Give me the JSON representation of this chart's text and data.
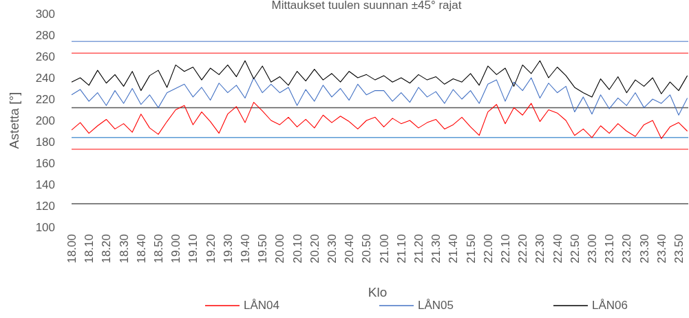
{
  "chart_data": {
    "type": "line",
    "title": "Mittaukset tuulen suunnan ±45° rajat",
    "xlabel": "Klo",
    "ylabel": "Astetta [°]",
    "categories": [
      "18.00",
      null,
      "18.10",
      null,
      "18.20",
      null,
      "18.30",
      null,
      "18.40",
      null,
      "18.50",
      null,
      "19.00",
      null,
      "19.10",
      null,
      "19.20",
      null,
      "19.30",
      null,
      "19.40",
      null,
      "19.50",
      null,
      "20.00",
      null,
      "20.10",
      null,
      "20.20",
      null,
      "20.30",
      null,
      "20.40",
      null,
      "20.50",
      null,
      "21.00",
      null,
      "21.10",
      null,
      "21.20",
      null,
      "21.30",
      null,
      "21.40",
      null,
      "21.50",
      null,
      "22.00",
      null,
      "22.10",
      null,
      "22.20",
      null,
      "22.30",
      null,
      "22.40",
      null,
      "22.50",
      null,
      "23.00",
      null,
      "23.10",
      null,
      "23.20",
      null,
      "23.30",
      null,
      "23.40",
      null,
      "23.50",
      null
    ],
    "series": [
      {
        "name": "LÅN04",
        "color": "#ff0000",
        "values": [
          191,
          198,
          188,
          195,
          201,
          192,
          197,
          189,
          206,
          193,
          187,
          199,
          210,
          214,
          196,
          208,
          199,
          188,
          206,
          213,
          198,
          217,
          209,
          200,
          196,
          203,
          194,
          201,
          193,
          205,
          198,
          204,
          199,
          192,
          200,
          203,
          194,
          202,
          197,
          200,
          193,
          198,
          201,
          192,
          196,
          203,
          194,
          186,
          208,
          215,
          197,
          212,
          205,
          216,
          199,
          210,
          207,
          200,
          186,
          192,
          184,
          195,
          188,
          197,
          190,
          185,
          196,
          200,
          183,
          194,
          198,
          190
        ]
      },
      {
        "name": "LÅN05",
        "color": "#4472c4",
        "values": [
          224,
          229,
          218,
          226,
          214,
          228,
          216,
          230,
          215,
          224,
          212,
          226,
          230,
          234,
          222,
          231,
          219,
          235,
          226,
          233,
          221,
          240,
          226,
          234,
          226,
          231,
          214,
          229,
          218,
          233,
          222,
          230,
          219,
          234,
          224,
          228,
          228,
          218,
          226,
          217,
          231,
          222,
          227,
          216,
          229,
          220,
          228,
          216,
          234,
          238,
          218,
          236,
          228,
          240,
          221,
          235,
          226,
          232,
          208,
          222,
          206,
          224,
          211,
          221,
          214,
          226,
          212,
          220,
          216,
          224,
          205,
          221
        ]
      },
      {
        "name": "LÅN06",
        "color": "#000000",
        "values": [
          236,
          240,
          233,
          247,
          235,
          243,
          232,
          246,
          228,
          242,
          247,
          231,
          252,
          246,
          250,
          238,
          249,
          243,
          252,
          241,
          256,
          239,
          251,
          236,
          241,
          233,
          246,
          237,
          248,
          238,
          244,
          236,
          246,
          240,
          243,
          238,
          242,
          236,
          240,
          235,
          243,
          238,
          241,
          234,
          239,
          236,
          244,
          233,
          251,
          243,
          249,
          232,
          252,
          244,
          256,
          240,
          250,
          242,
          231,
          226,
          222,
          239,
          229,
          241,
          226,
          238,
          232,
          240,
          225,
          236,
          228,
          242
        ]
      }
    ],
    "ref_lines": [
      {
        "axis": "y",
        "value": 263,
        "color": "#ff5b5b"
      },
      {
        "axis": "y",
        "value": 173,
        "color": "#ff5b5b"
      },
      {
        "axis": "y",
        "value": 274,
        "color": "#7f9fd8"
      },
      {
        "axis": "y",
        "value": 184,
        "color": "#5b9bd5"
      },
      {
        "axis": "y",
        "value": 212,
        "color": "#595959"
      },
      {
        "axis": "y",
        "value": 122,
        "color": "#595959"
      }
    ],
    "ylim": [
      100,
      300
    ],
    "yticks": [
      100,
      120,
      140,
      160,
      180,
      200,
      220,
      240,
      260,
      280,
      300
    ],
    "grid": false,
    "legend": "bottom",
    "marker": "none",
    "line_style": "solid"
  }
}
